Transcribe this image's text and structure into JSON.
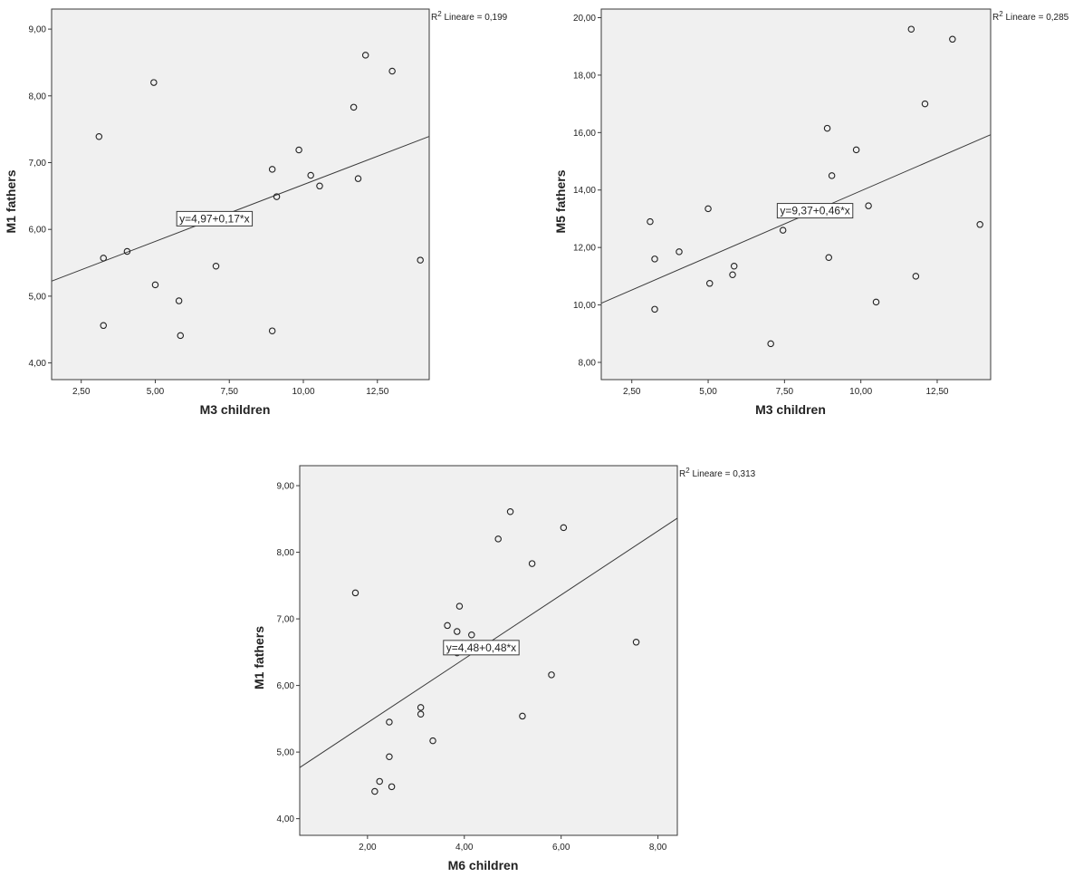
{
  "chart_data": [
    {
      "type": "scatter",
      "xlabel": "M3 children",
      "ylabel": "M1 fathers",
      "xlim": [
        1.5,
        14.25
      ],
      "ylim": [
        3.75,
        9.3
      ],
      "xticks": [
        2.5,
        5,
        7.5,
        10,
        12.5
      ],
      "xtick_labels": [
        "2,50",
        "5,00",
        "7,50",
        "10,00",
        "12,50"
      ],
      "yticks": [
        4,
        5,
        6,
        7,
        8,
        9
      ],
      "ytick_labels": [
        "4,00",
        "5,00",
        "6,00",
        "7,00",
        "8,00",
        "9,00"
      ],
      "r2_prefix": "R",
      "r2_sup": "2",
      "r2_text": " Lineare = 0,199",
      "fit_label": "y=4,97+0,17*x",
      "fit_label_at_x": 7.0,
      "fit": {
        "intercept": 4.97,
        "slope": 0.17
      },
      "points": [
        {
          "x": 3.1,
          "y": 7.39
        },
        {
          "x": 4.95,
          "y": 8.2
        },
        {
          "x": 3.25,
          "y": 5.57
        },
        {
          "x": 4.05,
          "y": 5.67
        },
        {
          "x": 3.25,
          "y": 4.56
        },
        {
          "x": 5.0,
          "y": 5.17
        },
        {
          "x": 5.8,
          "y": 4.93
        },
        {
          "x": 5.85,
          "y": 4.41
        },
        {
          "x": 7.05,
          "y": 5.45
        },
        {
          "x": 7.45,
          "y": 6.16
        },
        {
          "x": 8.95,
          "y": 6.9
        },
        {
          "x": 9.1,
          "y": 6.49
        },
        {
          "x": 8.95,
          "y": 4.48
        },
        {
          "x": 9.85,
          "y": 7.19
        },
        {
          "x": 10.25,
          "y": 6.81
        },
        {
          "x": 10.55,
          "y": 6.65
        },
        {
          "x": 11.7,
          "y": 7.83
        },
        {
          "x": 11.85,
          "y": 6.76
        },
        {
          "x": 12.1,
          "y": 8.61
        },
        {
          "x": 13.0,
          "y": 8.37
        },
        {
          "x": 13.95,
          "y": 5.54
        }
      ]
    },
    {
      "type": "scatter",
      "xlabel": "M3 children",
      "ylabel": "M5 fathers",
      "xlim": [
        1.5,
        14.25
      ],
      "ylim": [
        7.4,
        20.3
      ],
      "xticks": [
        2.5,
        5,
        7.5,
        10,
        12.5
      ],
      "xtick_labels": [
        "2,50",
        "5,00",
        "7,50",
        "10,00",
        "12,50"
      ],
      "yticks": [
        8,
        10,
        12,
        14,
        16,
        18,
        20
      ],
      "ytick_labels": [
        "8,00",
        "10,00",
        "12,00",
        "14,00",
        "16,00",
        "18,00",
        "20,00"
      ],
      "r2_prefix": "R",
      "r2_sup": "2",
      "r2_text": " Lineare = 0,285",
      "fit_label": "y=9,37+0,46*x",
      "fit_label_at_x": 8.5,
      "fit": {
        "intercept": 9.37,
        "slope": 0.46
      },
      "points": [
        {
          "x": 3.1,
          "y": 12.9
        },
        {
          "x": 3.25,
          "y": 11.6
        },
        {
          "x": 3.25,
          "y": 9.85
        },
        {
          "x": 4.05,
          "y": 11.85
        },
        {
          "x": 5.0,
          "y": 13.35
        },
        {
          "x": 5.05,
          "y": 10.75
        },
        {
          "x": 5.8,
          "y": 11.05
        },
        {
          "x": 5.85,
          "y": 11.35
        },
        {
          "x": 7.05,
          "y": 8.65
        },
        {
          "x": 7.45,
          "y": 12.6
        },
        {
          "x": 8.9,
          "y": 16.15
        },
        {
          "x": 9.05,
          "y": 14.5
        },
        {
          "x": 8.95,
          "y": 11.65
        },
        {
          "x": 9.85,
          "y": 15.4
        },
        {
          "x": 10.25,
          "y": 13.45
        },
        {
          "x": 10.5,
          "y": 10.1
        },
        {
          "x": 11.65,
          "y": 19.6
        },
        {
          "x": 11.8,
          "y": 11.0
        },
        {
          "x": 12.1,
          "y": 17.0
        },
        {
          "x": 13.0,
          "y": 19.25
        },
        {
          "x": 13.9,
          "y": 12.8
        }
      ]
    },
    {
      "type": "scatter",
      "xlabel": "M6 children",
      "ylabel": "M1 fathers",
      "xlim": [
        0.6,
        8.4
      ],
      "ylim": [
        3.75,
        9.3
      ],
      "xticks": [
        2,
        4,
        6,
        8
      ],
      "xtick_labels": [
        "2,00",
        "4,00",
        "6,00",
        "8,00"
      ],
      "yticks": [
        4,
        5,
        6,
        7,
        8,
        9
      ],
      "ytick_labels": [
        "4,00",
        "5,00",
        "6,00",
        "7,00",
        "8,00",
        "9,00"
      ],
      "r2_prefix": "R",
      "r2_sup": "2",
      "r2_text": " Lineare = 0,313",
      "fit_label": "y=4,48+0,48*x",
      "fit_label_at_x": 4.35,
      "fit": {
        "intercept": 4.48,
        "slope": 0.48
      },
      "points": [
        {
          "x": 1.75,
          "y": 7.39
        },
        {
          "x": 2.15,
          "y": 4.41
        },
        {
          "x": 2.25,
          "y": 4.56
        },
        {
          "x": 2.45,
          "y": 5.45
        },
        {
          "x": 2.45,
          "y": 4.93
        },
        {
          "x": 2.5,
          "y": 4.48
        },
        {
          "x": 3.1,
          "y": 5.67
        },
        {
          "x": 3.1,
          "y": 5.57
        },
        {
          "x": 3.35,
          "y": 5.17
        },
        {
          "x": 3.65,
          "y": 6.9
        },
        {
          "x": 3.85,
          "y": 6.81
        },
        {
          "x": 3.85,
          "y": 6.49
        },
        {
          "x": 3.9,
          "y": 7.19
        },
        {
          "x": 4.15,
          "y": 6.76
        },
        {
          "x": 4.7,
          "y": 8.2
        },
        {
          "x": 4.95,
          "y": 8.61
        },
        {
          "x": 5.2,
          "y": 5.54
        },
        {
          "x": 5.4,
          "y": 7.83
        },
        {
          "x": 5.8,
          "y": 6.16
        },
        {
          "x": 6.05,
          "y": 8.37
        },
        {
          "x": 7.55,
          "y": 6.65
        }
      ]
    }
  ]
}
